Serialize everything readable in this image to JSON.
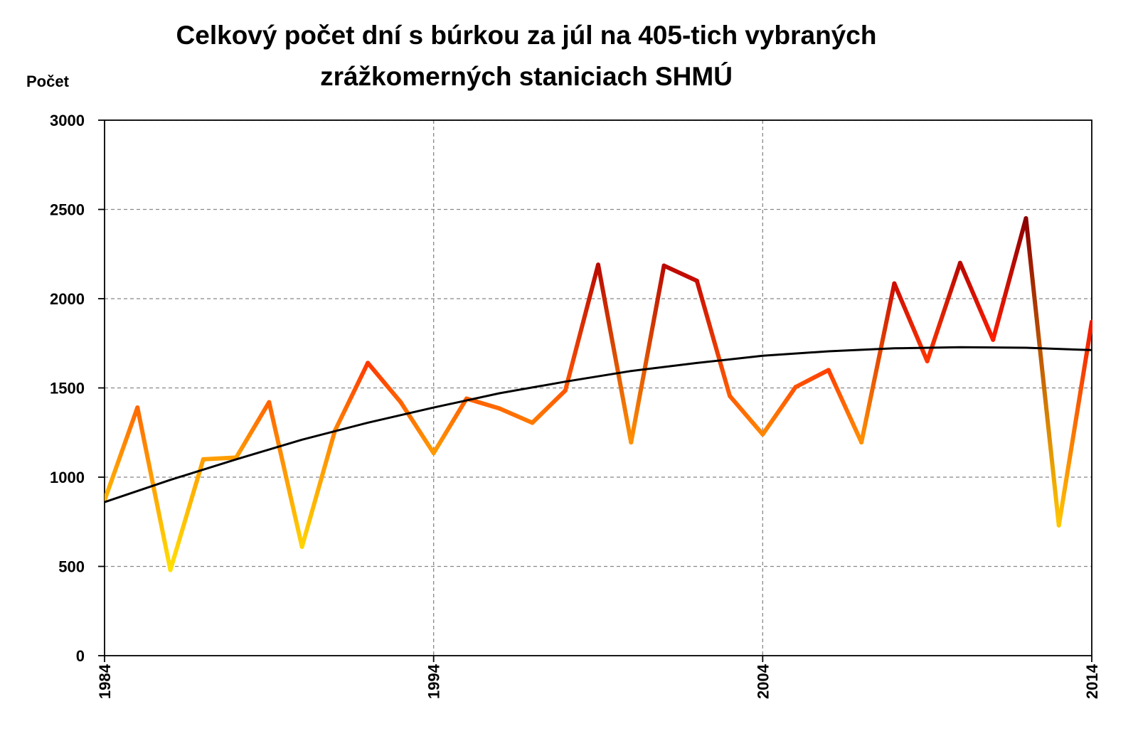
{
  "chart_data": {
    "type": "line",
    "title_lines": [
      "Celkový počet dní s búrkou za júl na 405-tich vybraných",
      "zrážkomerných staniciach SHMÚ"
    ],
    "xlabel": "",
    "ylabel": "Počet",
    "xlim": [
      1984,
      2014
    ],
    "ylim": [
      0,
      3000
    ],
    "y_ticks": [
      "0",
      "500",
      "1000",
      "1500",
      "2000",
      "2500",
      "3000"
    ],
    "x_ticks": [
      "1984",
      "1994",
      "2004",
      "2014"
    ],
    "grid": true,
    "legend": "none",
    "series": [
      {
        "x": [
          1984,
          1985,
          1986,
          1987,
          1988,
          1989,
          1990,
          1991,
          1992,
          1993,
          1994,
          1995,
          1996,
          1997,
          1998,
          1999,
          2000,
          2001,
          2002,
          2003,
          2004,
          2005,
          2006,
          2007,
          2008,
          2009,
          2010,
          2011,
          2012,
          2013,
          2014
        ],
        "values": [
          870,
          1390,
          480,
          1100,
          1110,
          1420,
          610,
          1260,
          1640,
          1420,
          1135,
          1440,
          1385,
          1305,
          1485,
          2190,
          1195,
          2185,
          2100,
          1455,
          1240,
          1505,
          1600,
          1195,
          2085,
          1650,
          2200,
          1770,
          2450,
          730,
          1870
        ],
        "color_scale": [
          "#ffe000",
          "#ff9900",
          "#ff1800",
          "#8b0000"
        ]
      },
      {
        "trend": "polynomial",
        "x": [
          1984,
          1986,
          1988,
          1990,
          1992,
          1994,
          1996,
          1998,
          2000,
          2002,
          2004,
          2006,
          2008,
          2010,
          2012,
          2014
        ],
        "values": [
          860,
          985,
          1100,
          1210,
          1305,
          1390,
          1470,
          1535,
          1595,
          1640,
          1680,
          1705,
          1722,
          1728,
          1725,
          1712
        ],
        "color": "#000000"
      }
    ]
  }
}
